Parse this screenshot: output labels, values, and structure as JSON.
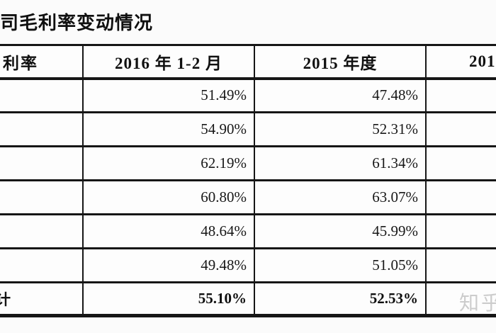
{
  "page": {
    "title": "司毛利率变动情况"
  },
  "table": {
    "headers": {
      "metric": "利率",
      "period_2016": "2016 年 1-2 月",
      "period_2015": "2015 年度",
      "period_next_partial": "201"
    },
    "rows": [
      {
        "v2016": "51.49%",
        "v2015": "47.48%"
      },
      {
        "v2016": "54.90%",
        "v2015": "52.31%"
      },
      {
        "v2016": "62.19%",
        "v2015": "61.34%"
      },
      {
        "v2016": "60.80%",
        "v2015": "63.07%"
      },
      {
        "v2016": "48.64%",
        "v2015": "45.99%"
      },
      {
        "v2016": "49.48%",
        "v2015": "51.05%"
      }
    ],
    "total_row": {
      "label_partial": "计",
      "v2016": "55.10%",
      "v2015": "52.53%"
    }
  },
  "watermark": {
    "text": "知乎"
  },
  "colors": {
    "border": "#161616",
    "text": "#141414",
    "watermark": "#cccccc",
    "background": "#fbfbfb"
  }
}
